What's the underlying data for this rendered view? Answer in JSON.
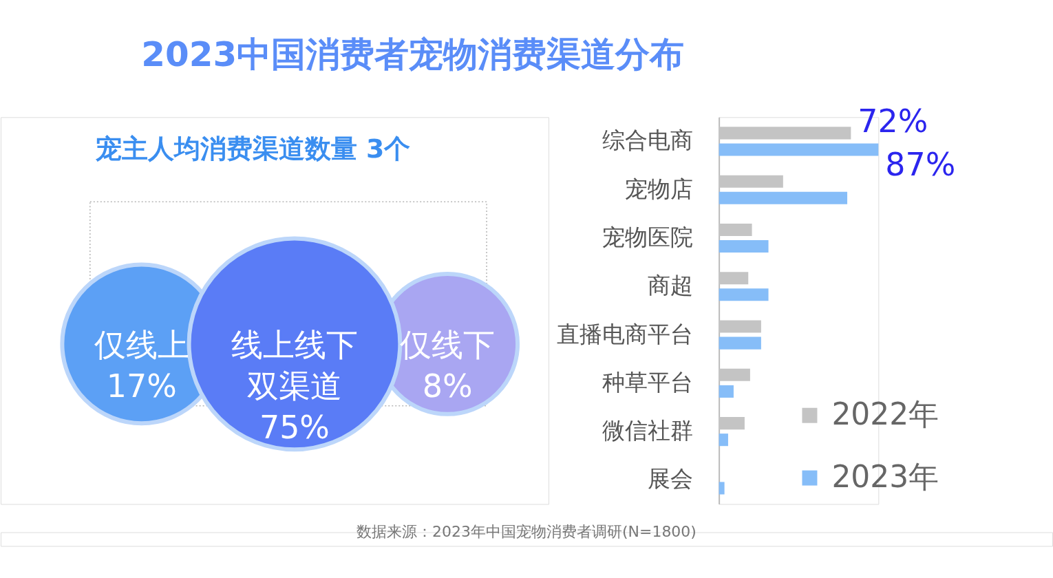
{
  "chart_data": [
    {
      "type": "other",
      "title": "2023中国消费者宠物消费渠道分布",
      "subtitle": "宠主人均消费渠道数量 3个",
      "categories": [
        "仅线上",
        "线上线下双渠道",
        "仅线下"
      ],
      "values": [
        17,
        75,
        8
      ],
      "value_labels": [
        "17%",
        "75%",
        "8%"
      ],
      "colors": [
        "#5ca0f5",
        "#5a7cf6",
        "#a9a6f2"
      ],
      "annotations": [
        "数据来源：2023年中国宠物消费者调研(N=1800)"
      ]
    },
    {
      "type": "bar",
      "orientation": "horizontal",
      "categories": [
        "综合电商",
        "宠物店",
        "宠物医院",
        "商超",
        "直播电商平台",
        "种草平台",
        "微信社群",
        "展会"
      ],
      "series": [
        {
          "name": "2022年",
          "color": "#c4c4c4",
          "values": [
            72,
            35,
            18,
            16,
            23,
            17,
            14,
            null
          ],
          "value_labels": [
            "72%",
            null,
            null,
            null,
            null,
            null,
            null,
            null
          ]
        },
        {
          "name": "2023年",
          "color": "#86bdf8",
          "values": [
            87,
            70,
            27,
            27,
            23,
            8,
            5,
            3
          ],
          "value_labels": [
            "87%",
            null,
            null,
            null,
            null,
            null,
            null,
            null
          ]
        }
      ],
      "legend": "bottom right"
    }
  ]
}
